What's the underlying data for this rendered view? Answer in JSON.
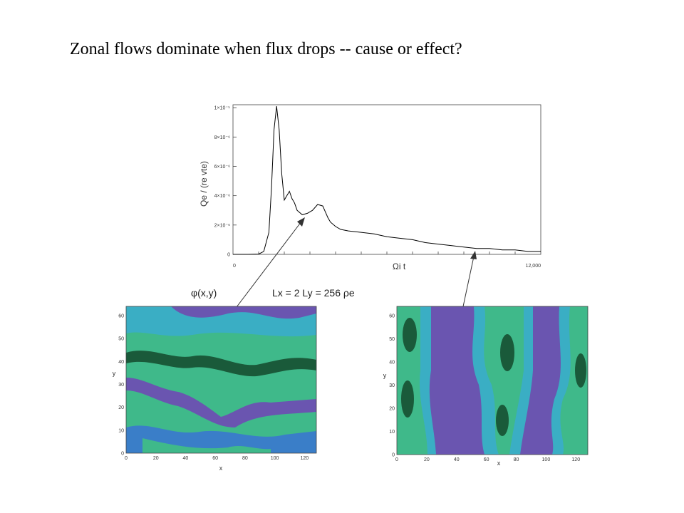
{
  "slide": {
    "title": "Zonal flows dominate when flux drops -- cause or effect?"
  },
  "colors": {
    "line": "#000000",
    "green": "#3fb98a",
    "dark_green": "#1a5a3a",
    "teal": "#3aaec4",
    "blue": "#3a7ec8",
    "purple": "#6a55b0",
    "frame": "#444444"
  },
  "chart_data": [
    {
      "type": "line",
      "ylabel": "Qe / (re vte)",
      "xlabel": "Ωi t",
      "x_tick_labels": [
        "0",
        "12,000"
      ],
      "y_tick_labels": [
        "0",
        "2×10⁻⁶",
        "4×10⁻⁶",
        "6×10⁻⁶",
        "8×10⁻⁶",
        "1×10⁻⁵"
      ],
      "xlim": [
        0,
        12000
      ],
      "ylim": [
        0,
        1.02e-05
      ],
      "series": [
        {
          "x": [
            0,
            600,
            1000,
            1200,
            1400,
            1500,
            1600,
            1700,
            1800,
            1900,
            2000,
            2100,
            2200,
            2300,
            2400,
            2500,
            2700,
            2900,
            3100,
            3300,
            3500,
            3600,
            3700,
            3800,
            4000,
            4200,
            4500,
            5000,
            5500,
            6000,
            6500,
            7000,
            7500,
            8000,
            8500,
            9000,
            9500,
            10000,
            10500,
            11000,
            11500,
            12000
          ],
          "y": [
            0,
            0,
            2e-08,
            2e-07,
            1.5e-06,
            4.5e-06,
            8.5e-06,
            1.01e-05,
            8.5e-06,
            5.5e-06,
            3.7e-06,
            4e-06,
            4.3e-06,
            3.8e-06,
            3.5e-06,
            3e-06,
            2.7e-06,
            2.8e-06,
            3e-06,
            3.4e-06,
            3.3e-06,
            2.9e-06,
            2.5e-06,
            2.2e-06,
            1.9e-06,
            1.7e-06,
            1.6e-06,
            1.5e-06,
            1.4e-06,
            1.2e-06,
            1.1e-06,
            1e-06,
            8e-07,
            7e-07,
            6e-07,
            5e-07,
            4e-07,
            4e-07,
            3e-07,
            3e-07,
            2e-07,
            2e-07
          ]
        }
      ]
    },
    {
      "type": "heatmap",
      "title": "φ(x,y)",
      "annotation": "Lx = 2 Ly = 256 ρe",
      "xlabel": "x",
      "ylabel": "y",
      "x_ticks": [
        "0",
        "20",
        "40",
        "60",
        "80",
        "100",
        "120"
      ],
      "y_ticks": [
        "0",
        "10",
        "20",
        "30",
        "40",
        "50",
        "60"
      ],
      "pattern": "horizontal-streamers"
    },
    {
      "type": "heatmap",
      "xlabel": "x",
      "ylabel": "y",
      "x_ticks": [
        "0",
        "20",
        "40",
        "60",
        "80",
        "100",
        "120"
      ],
      "y_ticks": [
        "0",
        "10",
        "20",
        "30",
        "40",
        "50",
        "60"
      ],
      "pattern": "vertical-zonal-bands"
    }
  ]
}
